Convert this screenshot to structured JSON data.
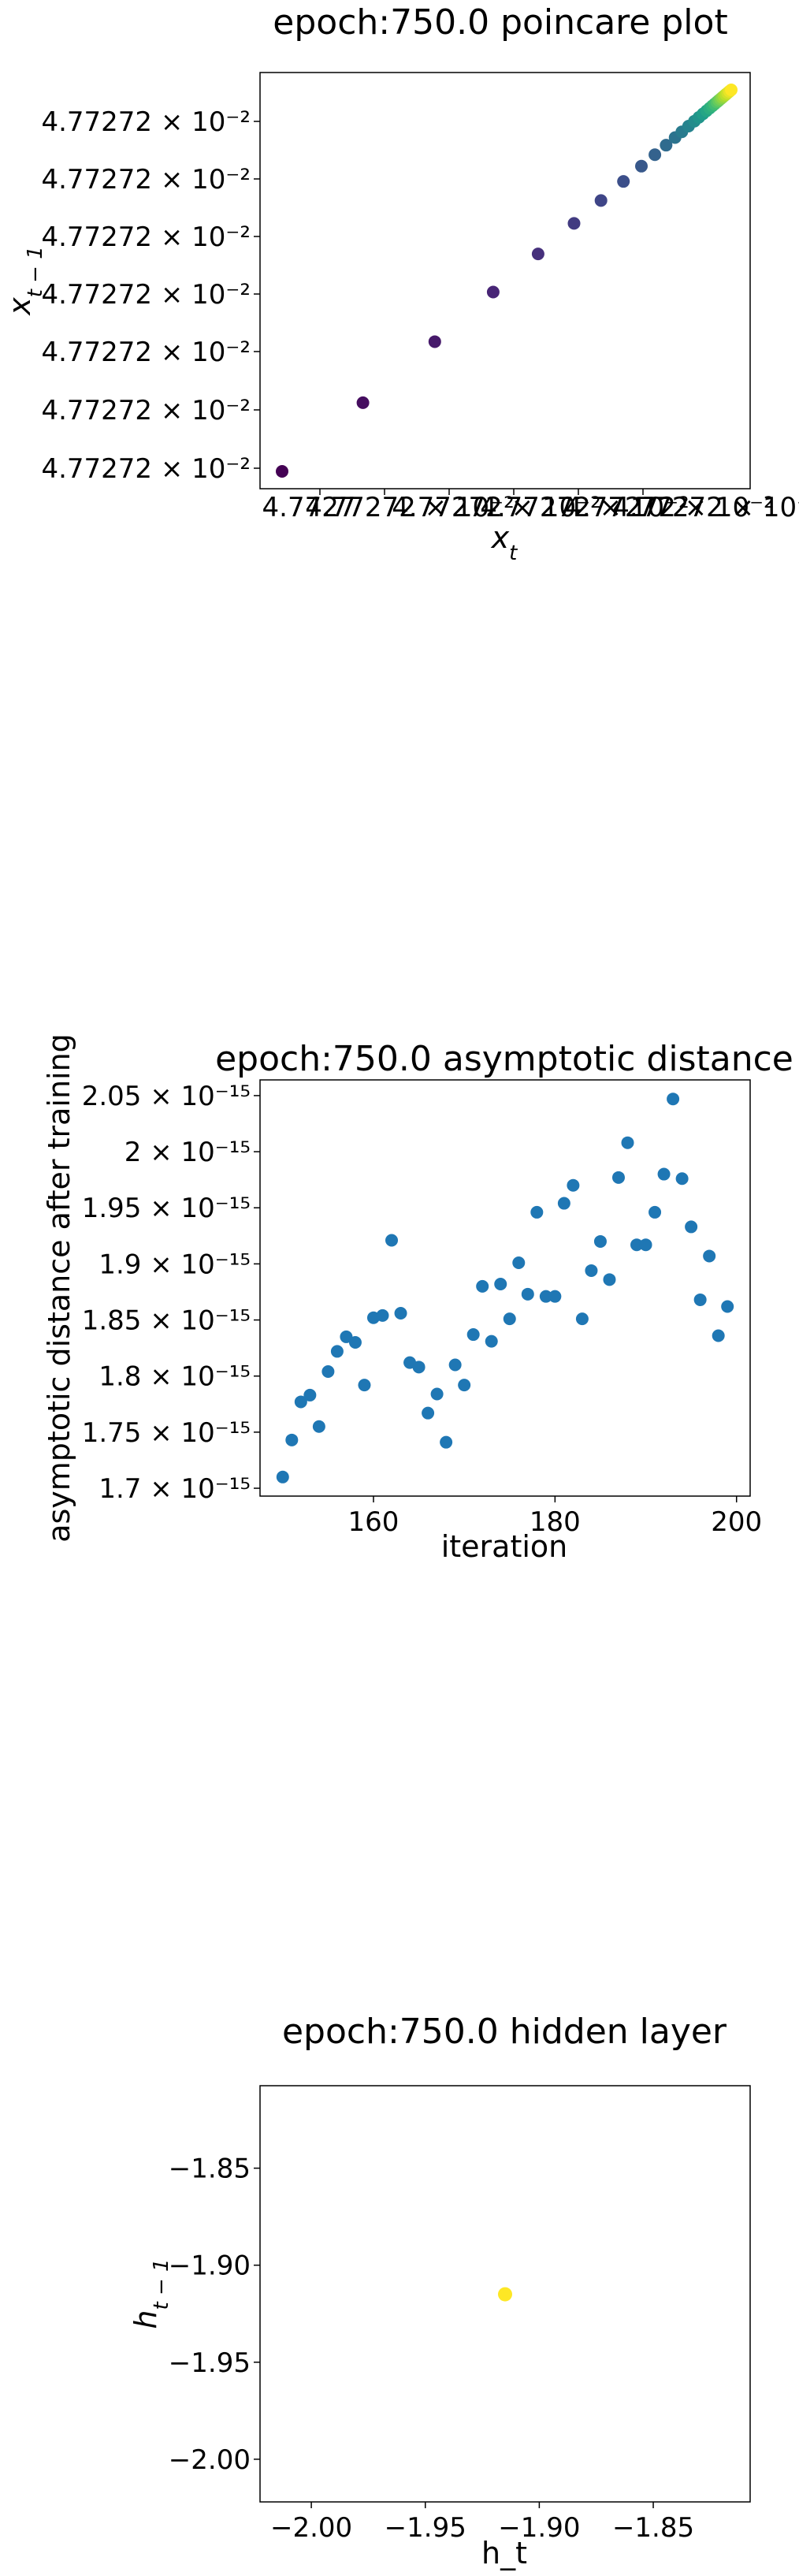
{
  "chart_data": [
    {
      "type": "scatter",
      "title": "epoch:750.0 poincare plot",
      "xlabel": "x_t",
      "ylabel": "x_{t-1}",
      "x_tick_labels": [
        "4.7727",
        "4.77272 × 10⁻²",
        "4.77272 × 10⁻²",
        "4.77272 × 10⁻²",
        "4.77272 × 10⁻²",
        "4.77272 × 10⁻²"
      ],
      "y_tick_labels": [
        "4.77272 × 10⁻²",
        "4.77272 × 10⁻²",
        "4.77272 × 10⁻²",
        "4.77272 × 10⁻²",
        "4.77272 × 10⁻²",
        "4.77272 × 10⁻²",
        "4.77272 × 10⁻²"
      ],
      "colormap": "viridis",
      "colormap_colors": [
        "#440154",
        "#482878",
        "#3e4a89",
        "#31688e",
        "#26828e",
        "#1f9e89",
        "#35b779",
        "#6ece58",
        "#b5de2b",
        "#fde725"
      ],
      "x": [
        0.0,
        0.18,
        0.34,
        0.47,
        0.57,
        0.65,
        0.71,
        0.76,
        0.8,
        0.83,
        0.855,
        0.875,
        0.89,
        0.905,
        0.918,
        0.928,
        0.937,
        0.945,
        0.952,
        0.958,
        0.963,
        0.968,
        0.972,
        0.976,
        0.98,
        0.984,
        0.988,
        0.992,
        0.996,
        1.0
      ],
      "y": [
        0.0,
        0.18,
        0.34,
        0.47,
        0.57,
        0.65,
        0.71,
        0.76,
        0.8,
        0.83,
        0.855,
        0.875,
        0.89,
        0.905,
        0.918,
        0.928,
        0.937,
        0.945,
        0.952,
        0.958,
        0.963,
        0.968,
        0.972,
        0.976,
        0.98,
        0.984,
        0.988,
        0.992,
        0.996,
        1.0
      ],
      "grid": false
    },
    {
      "type": "scatter",
      "title": "epoch:750.0 asymptotic distance",
      "xlabel": "iteration",
      "ylabel": "asymptotic distance after training",
      "xlim": [
        147.5,
        201.5
      ],
      "ylim": [
        1.693,
        2.064
      ],
      "xticks": [
        160,
        180,
        200
      ],
      "yticks": [
        1.7,
        1.75,
        1.8,
        1.85,
        1.9,
        1.95,
        2.0,
        2.05
      ],
      "ytick_labels": [
        "1.7",
        "1.75",
        "1.8",
        "1.85",
        "1.9",
        "1.95",
        "2",
        "2.05"
      ],
      "ytick_exponent": "× 10⁻¹⁵",
      "color": "#1f77b4",
      "x": [
        150,
        151,
        152,
        153,
        154,
        155,
        156,
        157,
        158,
        159,
        160,
        161,
        162,
        163,
        164,
        165,
        166,
        167,
        168,
        169,
        170,
        171,
        172,
        173,
        174,
        175,
        176,
        177,
        178,
        179,
        180,
        181,
        182,
        183,
        184,
        185,
        186,
        187,
        188,
        189,
        190,
        191,
        192,
        193,
        194,
        195,
        196,
        197,
        198,
        199
      ],
      "y": [
        1.71,
        1.743,
        1.777,
        1.783,
        1.755,
        1.804,
        1.822,
        1.835,
        1.83,
        1.792,
        1.852,
        1.854,
        1.921,
        1.856,
        1.812,
        1.808,
        1.767,
        1.784,
        1.741,
        1.81,
        1.792,
        1.837,
        1.88,
        1.831,
        1.882,
        1.851,
        1.901,
        1.873,
        1.946,
        1.871,
        1.871,
        1.954,
        1.97,
        1.851,
        1.894,
        1.92,
        1.886,
        1.977,
        2.008,
        1.917,
        1.917,
        1.946,
        1.98,
        2.047,
        1.976,
        1.933,
        1.868,
        1.907,
        1.836,
        1.862
      ],
      "grid": false
    },
    {
      "type": "scatter",
      "title": "epoch:750.0 hidden layer",
      "xlabel": "h_t",
      "ylabel": "h_{t-1}",
      "xlim": [
        -2.0225,
        -1.8075
      ],
      "ylim": [
        -2.022,
        -1.8075
      ],
      "xticks": [
        -2.0,
        -1.95,
        -1.9,
        -1.85
      ],
      "yticks": [
        -2.0,
        -1.95,
        -1.9,
        -1.85
      ],
      "xtick_labels": [
        "−2.00",
        "−1.95",
        "−1.90",
        "−1.85"
      ],
      "ytick_labels": [
        "−2.00",
        "−1.95",
        "−1.90",
        "−1.85"
      ],
      "color": "#fde725",
      "x": [
        -1.915
      ],
      "y": [
        -1.915
      ],
      "grid": false
    }
  ]
}
